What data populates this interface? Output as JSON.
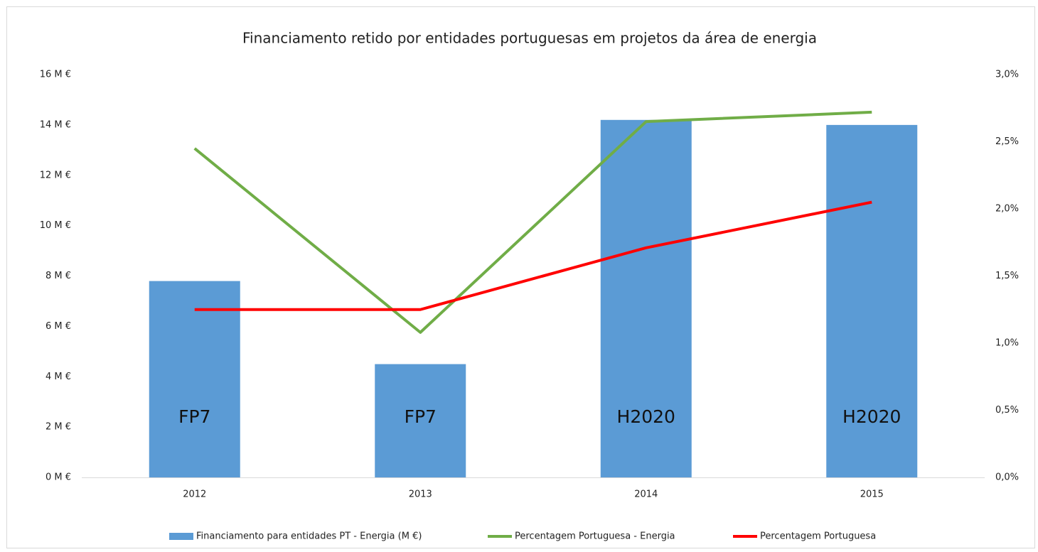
{
  "chart_data": {
    "type": "bar-line",
    "title": "Financiamento retido por entidades portuguesas em projetos da área de energia",
    "categories": [
      "2012",
      "2013",
      "2014",
      "2015"
    ],
    "series": [
      {
        "name": "Financiamento para entidades PT - Energia (M €)",
        "type": "bar",
        "color": "#5b9bd5",
        "values": [
          7.8,
          4.5,
          14.2,
          14.0
        ],
        "bar_labels": [
          "FP7",
          "FP7",
          "H2020",
          "H2020"
        ]
      },
      {
        "name": "Percentagem Portuguesa - Energia",
        "type": "line",
        "axis": "y2",
        "color": "#70ad47",
        "values": [
          2.45,
          1.08,
          2.65,
          2.72
        ]
      },
      {
        "name": "Percentagem Portuguesa",
        "type": "line",
        "axis": "y2",
        "color": "#ff0000",
        "values": [
          1.25,
          1.25,
          1.71,
          2.05
        ]
      }
    ],
    "ylim": [
      0,
      16
    ],
    "yticks": [
      {
        "value": 0,
        "label": "0 M €"
      },
      {
        "value": 2,
        "label": "2 M €"
      },
      {
        "value": 4,
        "label": "4 M €"
      },
      {
        "value": 6,
        "label": "6 M €"
      },
      {
        "value": 8,
        "label": "8 M €"
      },
      {
        "value": 10,
        "label": "10 M €"
      },
      {
        "value": 12,
        "label": "12 M €"
      },
      {
        "value": 14,
        "label": "14 M €"
      },
      {
        "value": 16,
        "label": "16 M €"
      }
    ],
    "y2lim": [
      0,
      3
    ],
    "y2ticks": [
      {
        "value": 0,
        "label": "0,0%"
      },
      {
        "value": 0.5,
        "label": "0,5%"
      },
      {
        "value": 1,
        "label": "1,0%"
      },
      {
        "value": 1.5,
        "label": "1,5%"
      },
      {
        "value": 2,
        "label": "2,0%"
      },
      {
        "value": 2.5,
        "label": "2,5%"
      },
      {
        "value": 3,
        "label": "3,0%"
      }
    ]
  }
}
